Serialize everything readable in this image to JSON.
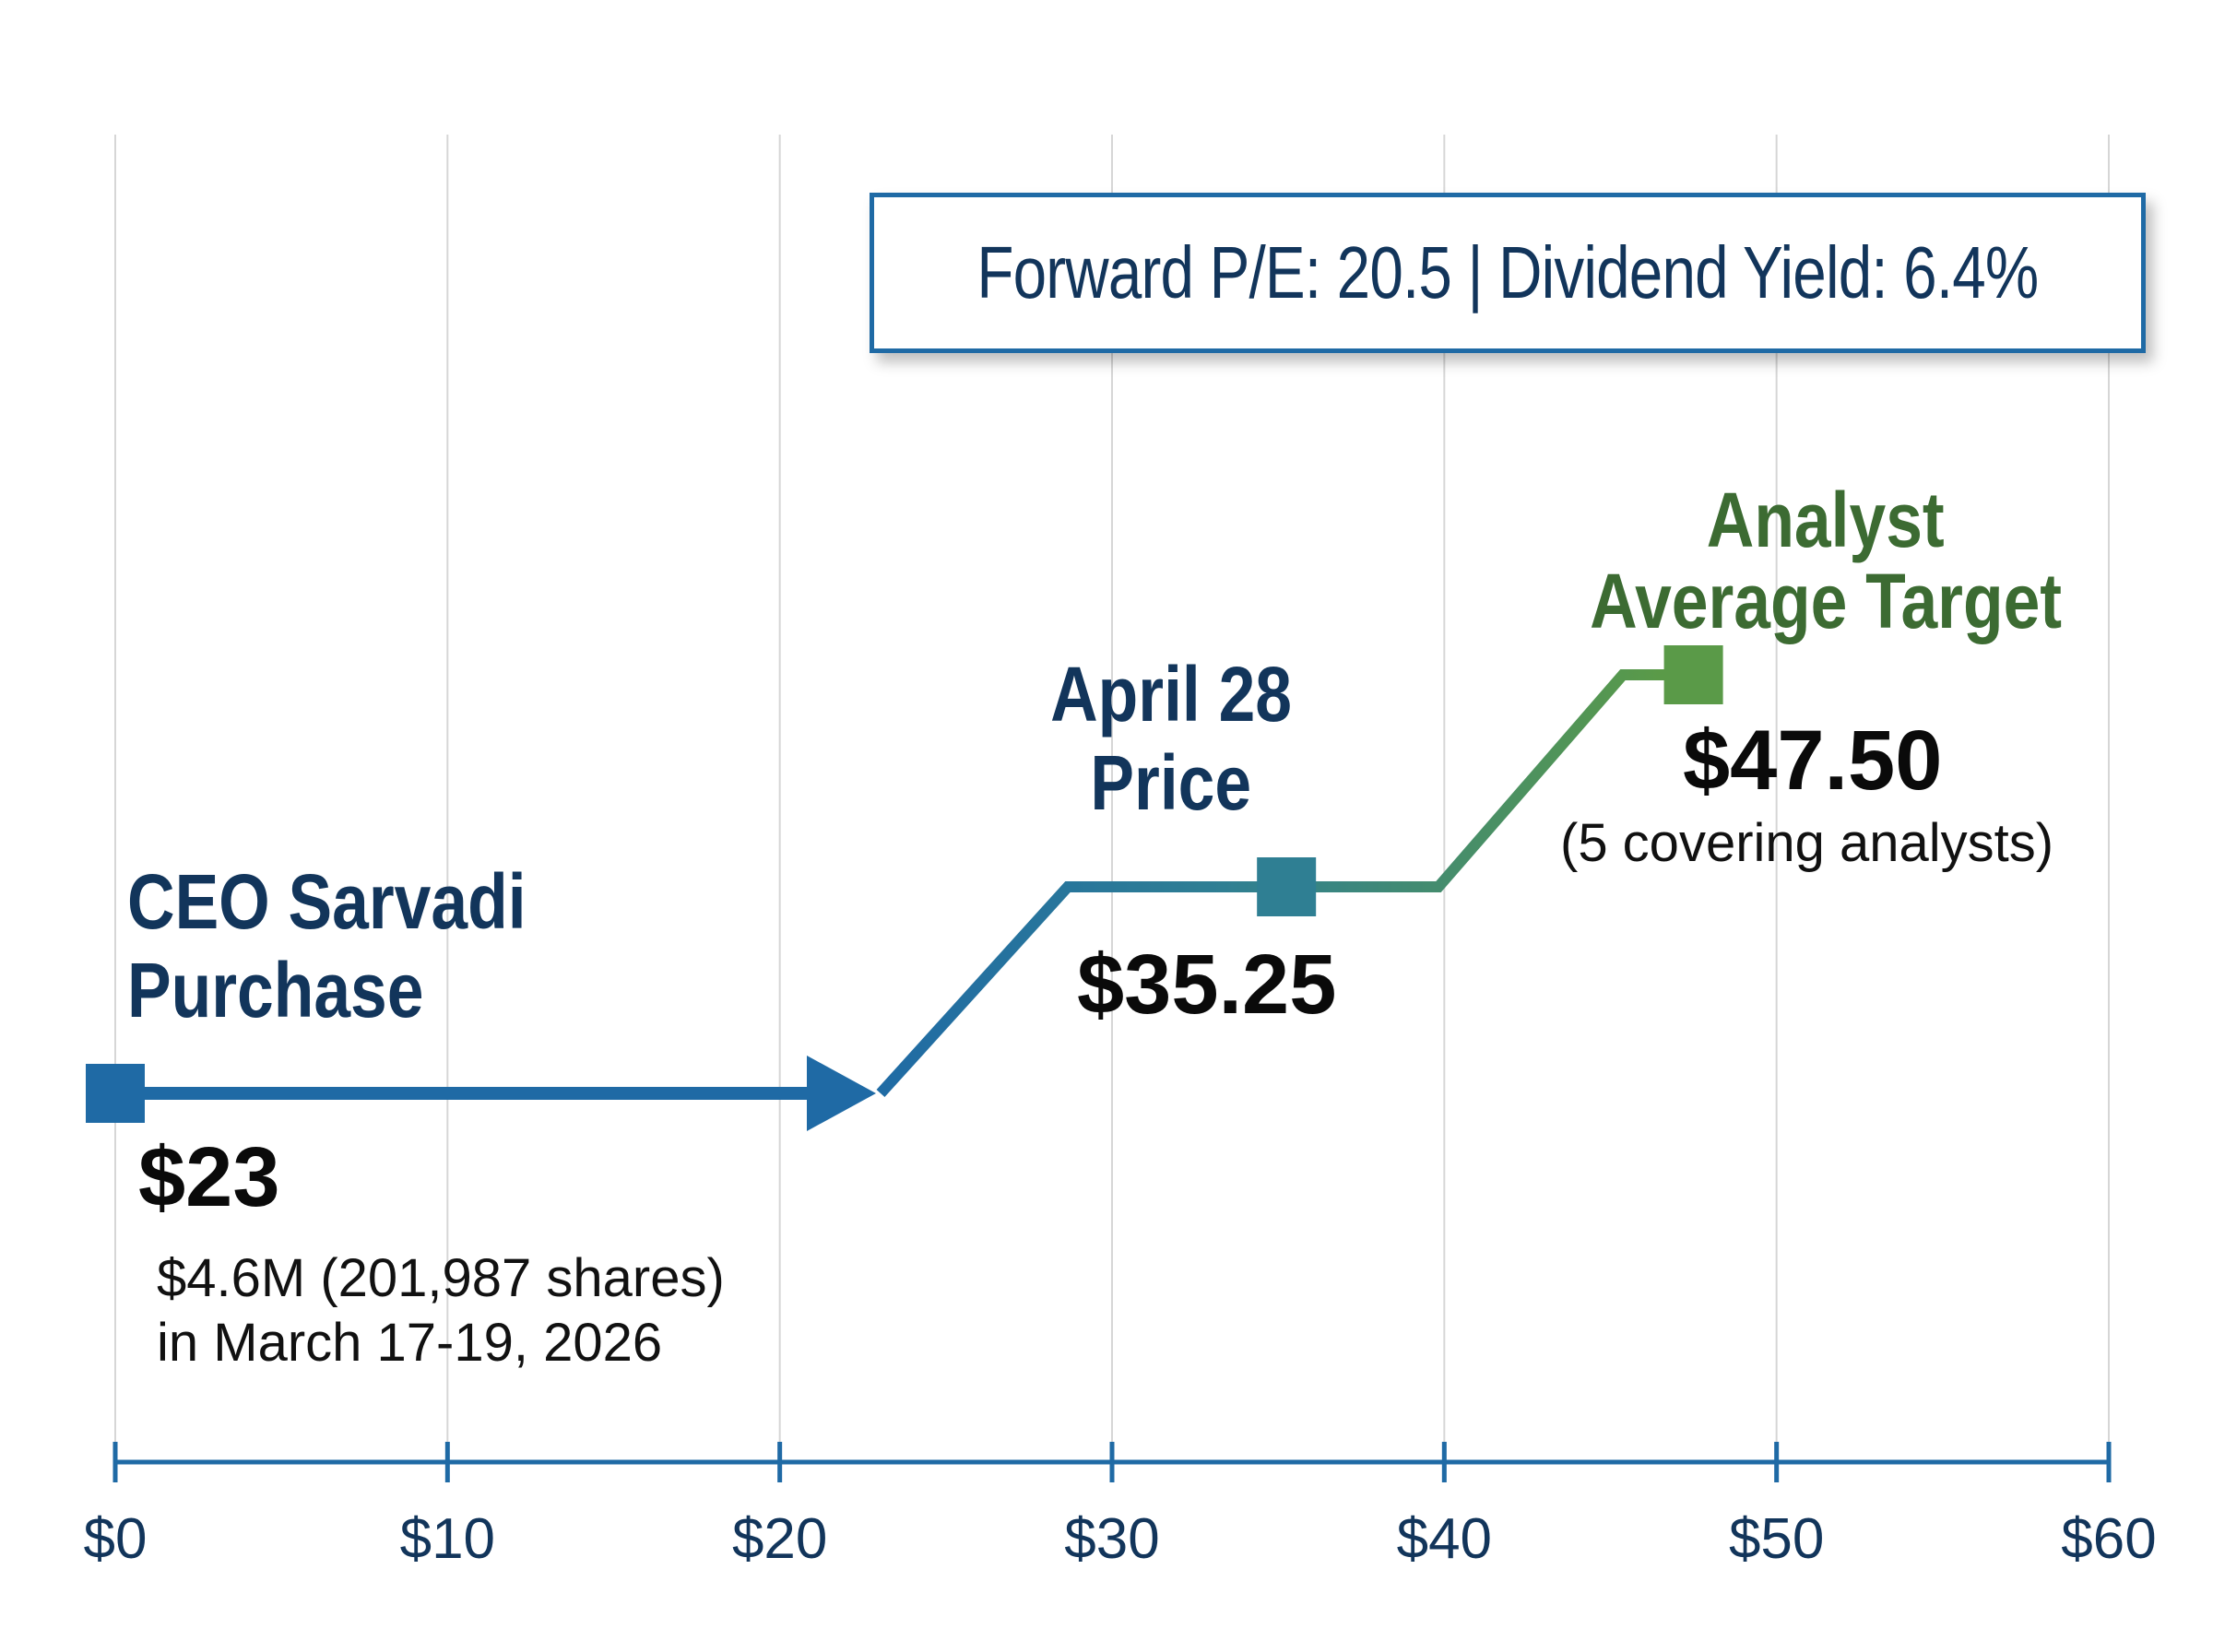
{
  "chart_data": {
    "type": "line",
    "x_axis": {
      "min": 0,
      "max": 60,
      "step": 10,
      "tick_labels": [
        "$0",
        "$10",
        "$20",
        "$30",
        "$40",
        "$50",
        "$60"
      ],
      "grid": true
    },
    "series": [
      {
        "points": [
          {
            "x": 23,
            "label_key": "purchase"
          },
          {
            "x": 35.25,
            "label_key": "april"
          },
          {
            "x": 47.5,
            "label_key": "target"
          }
        ]
      }
    ],
    "annotations": {
      "info_box": "Forward P/E: 20.5 | Dividend Yield: 6.4%",
      "purchase": {
        "title_line1": "CEO Sarvadi",
        "title_line2": "Purchase",
        "value": "$23",
        "note_line1": "$4.6M (201,987 shares)",
        "note_line2": "in March 17-19, 2026"
      },
      "april": {
        "title_line1": "April 28",
        "title_line2": "Price",
        "value": "$35.25"
      },
      "target": {
        "title_line1": "Analyst",
        "title_line2": "Average Target",
        "value": "$47.50",
        "note": "(5 covering analysts)"
      }
    },
    "colors": {
      "primary_blue": "#1f6aa5",
      "teal": "#2f7f93",
      "target_green": "#5a9a48",
      "title_navy": "#12355b",
      "title_green": "#3c6b32",
      "grid": "#d6d6d6",
      "axis": "#1f6aa5"
    }
  }
}
